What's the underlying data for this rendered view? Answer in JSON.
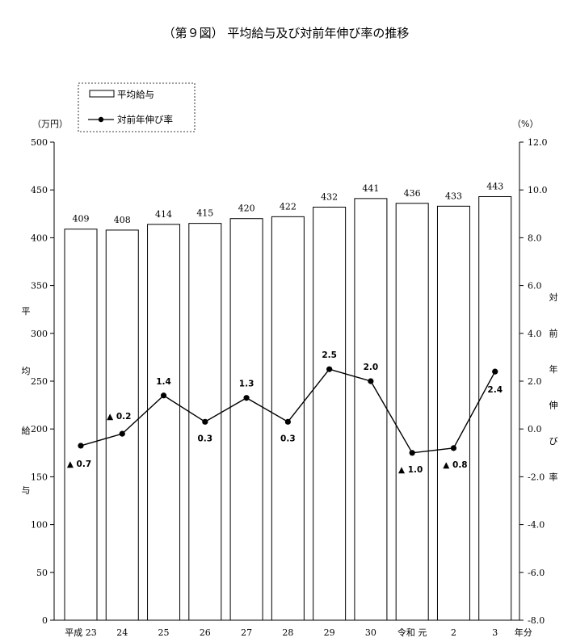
{
  "chart_data": {
    "type": "bar",
    "title": "（第９図） 平均給与及び対前年伸び率の推移",
    "categories": [
      "平成 23",
      "24",
      "25",
      "26",
      "27",
      "28",
      "29",
      "30",
      "令和 元",
      "2",
      "3"
    ],
    "x_suffix": "年分",
    "left_unit": "（万円）",
    "right_unit": "（%）",
    "left_axis_label": [
      "平",
      "均",
      "給",
      "与"
    ],
    "right_axis_label": [
      "対",
      "前",
      "年",
      "伸",
      "び",
      "率"
    ],
    "y_left": {
      "min": 0,
      "max": 500,
      "step": 50,
      "ticks": [
        "0",
        "50",
        "100",
        "150",
        "200",
        "250",
        "300",
        "350",
        "400",
        "450",
        "500"
      ]
    },
    "y_right": {
      "min": -8.0,
      "max": 12.0,
      "step": 2.0,
      "ticks": [
        "-8.0",
        "-6.0",
        "-4.0",
        "-2.0",
        "0.0",
        "2.0",
        "4.0",
        "6.0",
        "8.0",
        "10.0",
        "12.0"
      ]
    },
    "series": [
      {
        "name": "平均給与",
        "kind": "bar",
        "values": [
          409,
          408,
          414,
          415,
          420,
          422,
          432,
          441,
          436,
          433,
          443
        ],
        "labels": [
          "409",
          "408",
          "414",
          "415",
          "420",
          "422",
          "432",
          "441",
          "436",
          "433",
          "443"
        ]
      },
      {
        "name": "対前年伸び率",
        "kind": "line",
        "axis": "right",
        "values": [
          -0.7,
          -0.2,
          1.4,
          0.3,
          1.3,
          0.3,
          2.5,
          2.0,
          -1.0,
          -0.8,
          2.4
        ],
        "labels": [
          "▲ 0.7",
          "▲ 0.2",
          "1.4",
          "0.3",
          "1.3",
          "0.3",
          "2.5",
          "2.0",
          "▲ 1.0",
          "▲ 0.8",
          "2.4"
        ]
      }
    ],
    "legend": {
      "placement": "top-left",
      "box": "dashed"
    },
    "grid": false
  }
}
